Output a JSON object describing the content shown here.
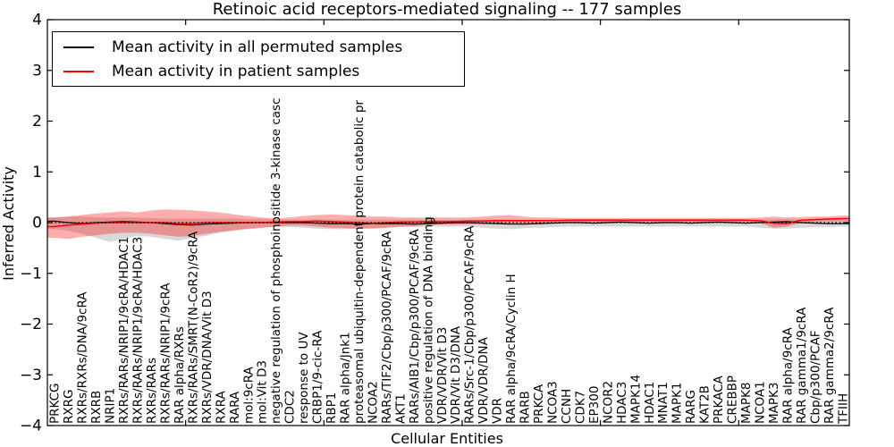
{
  "title": "Retinoic acid receptors-mediated signaling -- 177 samples",
  "axes": {
    "y_label": "Inferred Activity",
    "x_label": "Cellular Entities",
    "ylim": [
      -4,
      4
    ],
    "y_ticks": [
      {
        "value": 4,
        "label": "4"
      },
      {
        "value": 3,
        "label": "3"
      },
      {
        "value": 2,
        "label": "2"
      },
      {
        "value": 1,
        "label": "1"
      },
      {
        "value": 0,
        "label": "0"
      },
      {
        "value": -1,
        "label": "−1"
      },
      {
        "value": -2,
        "label": "−2"
      },
      {
        "value": -3,
        "label": "−3"
      },
      {
        "value": -4,
        "label": "−4"
      }
    ],
    "x_major_tick_positions": [
      10,
      20,
      30,
      40,
      50
    ]
  },
  "legend": {
    "items": [
      {
        "label": "Mean activity in all permuted samples",
        "color": "#000000"
      },
      {
        "label": "Mean activity in patient samples",
        "color": "#ff0000"
      }
    ]
  },
  "chart_data": {
    "type": "line",
    "title": "Retinoic acid receptors-mediated signaling -- 177 samples",
    "xlabel": "Cellular Entities",
    "ylabel": "Inferred Activity",
    "ylim": [
      -4,
      4
    ],
    "grid": false,
    "legend_position": "upper left",
    "zero_reference_line": {
      "y": 0,
      "style": "dotted",
      "color": "#000000"
    },
    "categories": [
      "PRKCG",
      "RXRG",
      "RXRs/RXRs/DNA/9cRA",
      "RXRB",
      "NRIP1",
      "RXRs/RARs/NRIP1/9cRA/HDAC1",
      "RXRs/RARs/NRIP1/9cRA/HDAC3",
      "RXRs/RARs",
      "RXRs/RARs/NRIP1/9cRA",
      "RAR alpha/RXRs",
      "RXRs/RARs/SMRT(N-CoR2)/9cRA",
      "RXRs/VDR/DNA/Vit D3",
      "RXRA",
      "RARA",
      "mol:9cRA",
      "mol:Vit D3",
      "negative regulation of phosphoinositide 3-kinase casc",
      "CDC2",
      "response to UV",
      "CRBP1/9-cic-RA",
      "RBP1",
      "RAR alpha/Jnk1",
      "proteasomal ubiquitin-dependent protein catabolic pr",
      "NCOA2",
      "RARs/TIF2/Cbp/p300/PCAF/9cRA",
      "AKT1",
      "RARs/AIB1/Cbp/p300/PCAF/9cRA",
      "positive regulation of DNA binding",
      "VDR/VDR/Vit D3",
      "VDR/Vit D3/DNA",
      "RARs/Src-1/Cbp/p300/PCAF/9cRA",
      "VDR/VDR/DNA",
      "VDR",
      "RAR alpha/9cRA/Cyclin H",
      "RARB",
      "PRKCA",
      "NCOA3",
      "CCNH",
      "CDK7",
      "EP300",
      "NCOR2",
      "HDAC3",
      "MAPK14",
      "HDAC1",
      "MNAT1",
      "MAPK1",
      "RARG",
      "KAT2B",
      "PRKACA",
      "CREBBP",
      "MAPK8",
      "NCOA1",
      "MAPK3",
      "RAR alpha/9cRA",
      "RAR gamma1/9cRA",
      "Cbp/p300/PCAF",
      "RAR gamma2/9cRA",
      "TFIIH"
    ],
    "series": [
      {
        "name": "Mean activity in all permuted samples",
        "type": "line",
        "color": "#000000",
        "values": [
          0.03,
          0.0,
          -0.02,
          0.0,
          0.01,
          0.02,
          0.01,
          0.0,
          -0.02,
          -0.04,
          -0.05,
          -0.03,
          -0.02,
          -0.01,
          0.0,
          0.0,
          0.0,
          0.0,
          0.0,
          -0.01,
          -0.02,
          -0.02,
          -0.03,
          -0.02,
          -0.02,
          -0.02,
          -0.03,
          -0.02,
          -0.01,
          0.0,
          0.0,
          -0.01,
          -0.02,
          -0.03,
          -0.03,
          -0.02,
          -0.01,
          0.0,
          0.0,
          -0.01,
          0.0,
          0.01,
          0.0,
          -0.01,
          0.0,
          0.0,
          -0.01,
          0.0,
          0.01,
          0.0,
          -0.01,
          0.0,
          0.01,
          0.02,
          0.0,
          -0.01,
          -0.02,
          -0.02
        ]
      },
      {
        "name": "Mean activity in patient samples",
        "type": "line",
        "color": "#ff0000",
        "values": [
          -0.08,
          -0.05,
          -0.03,
          -0.01,
          0.0,
          0.0,
          0.0,
          0.0,
          0.0,
          -0.02,
          -0.02,
          0.0,
          0.0,
          0.0,
          0.0,
          0.0,
          0.01,
          0.02,
          0.02,
          0.03,
          0.02,
          0.01,
          0.0,
          -0.01,
          0.0,
          0.01,
          0.01,
          0.02,
          0.02,
          0.02,
          0.03,
          0.03,
          0.04,
          0.04,
          0.04,
          0.04,
          0.04,
          0.05,
          0.05,
          0.05,
          0.05,
          0.05,
          0.05,
          0.05,
          0.05,
          0.05,
          0.05,
          0.05,
          0.05,
          0.05,
          0.05,
          0.04,
          -0.01,
          -0.02,
          0.05,
          0.06,
          0.07,
          0.08
        ]
      }
    ],
    "bands": [
      {
        "name": "permuted samples activity range",
        "color": "#909090",
        "opacity": 0.35,
        "upper": [
          0.1,
          0.12,
          0.12,
          0.1,
          0.1,
          0.1,
          0.1,
          0.09,
          0.08,
          0.08,
          0.08,
          0.08,
          0.08,
          0.08,
          0.07,
          0.07,
          0.06,
          0.06,
          0.06,
          0.06,
          0.06,
          0.06,
          0.06,
          0.06,
          0.06,
          0.06,
          0.06,
          0.06,
          0.06,
          0.06,
          0.06,
          0.06,
          0.06,
          0.06,
          0.05,
          0.05,
          0.05,
          0.05,
          0.05,
          0.05,
          0.05,
          0.05,
          0.05,
          0.05,
          0.05,
          0.05,
          0.05,
          0.05,
          0.05,
          0.05,
          0.05,
          0.06,
          0.07,
          0.07,
          0.06,
          0.06,
          0.06,
          0.06
        ],
        "lower": [
          -0.13,
          -0.16,
          -0.22,
          -0.3,
          -0.38,
          -0.32,
          -0.26,
          -0.28,
          -0.32,
          -0.36,
          -0.3,
          -0.26,
          -0.2,
          -0.16,
          -0.13,
          -0.1,
          -0.08,
          -0.09,
          -0.1,
          -0.12,
          -0.13,
          -0.13,
          -0.12,
          -0.11,
          -0.1,
          -0.09,
          -0.09,
          -0.08,
          -0.08,
          -0.08,
          -0.08,
          -0.1,
          -0.12,
          -0.13,
          -0.11,
          -0.1,
          -0.09,
          -0.08,
          -0.08,
          -0.08,
          -0.08,
          -0.08,
          -0.08,
          -0.08,
          -0.08,
          -0.08,
          -0.08,
          -0.08,
          -0.08,
          -0.08,
          -0.08,
          -0.1,
          -0.12,
          -0.12,
          -0.1,
          -0.09,
          -0.09,
          -0.08
        ]
      },
      {
        "name": "patient samples activity range",
        "color": "#ff0000",
        "opacity": 0.32,
        "upper": [
          0.1,
          0.12,
          0.15,
          0.18,
          0.2,
          0.22,
          0.2,
          0.24,
          0.26,
          0.25,
          0.24,
          0.22,
          0.2,
          0.16,
          0.13,
          0.1,
          0.08,
          0.1,
          0.13,
          0.15,
          0.16,
          0.15,
          0.14,
          0.12,
          0.12,
          0.1,
          0.1,
          0.1,
          0.1,
          0.1,
          0.1,
          0.12,
          0.14,
          0.15,
          0.12,
          0.1,
          0.1,
          0.09,
          0.09,
          0.09,
          0.09,
          0.09,
          0.09,
          0.09,
          0.09,
          0.09,
          0.09,
          0.09,
          0.09,
          0.09,
          0.09,
          0.1,
          0.12,
          0.1,
          0.11,
          0.12,
          0.12,
          0.14
        ],
        "lower": [
          -0.3,
          -0.32,
          -0.28,
          -0.25,
          -0.22,
          -0.2,
          -0.2,
          -0.22,
          -0.25,
          -0.28,
          -0.26,
          -0.22,
          -0.18,
          -0.15,
          -0.12,
          -0.1,
          -0.08,
          -0.06,
          -0.06,
          -0.08,
          -0.1,
          -0.11,
          -0.12,
          -0.12,
          -0.1,
          -0.08,
          -0.07,
          -0.05,
          -0.04,
          -0.04,
          -0.03,
          -0.03,
          -0.02,
          -0.02,
          -0.02,
          -0.01,
          0.0,
          0.01,
          0.01,
          0.01,
          0.01,
          0.01,
          0.01,
          0.01,
          0.01,
          0.01,
          0.01,
          0.01,
          0.01,
          0.01,
          0.01,
          0.0,
          -0.1,
          -0.08,
          0.0,
          0.01,
          0.02,
          0.02
        ]
      }
    ]
  }
}
